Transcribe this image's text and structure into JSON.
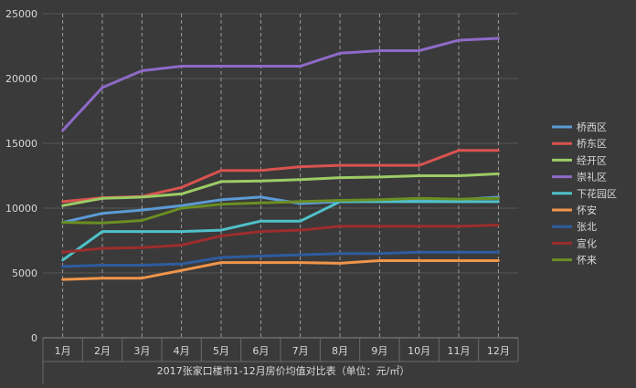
{
  "chart_data": {
    "type": "line",
    "title": "2017张家口楼市1-12月房价均值对比表（单位：元/㎡）",
    "xlabel": "",
    "ylabel": "",
    "categories": [
      "1月",
      "2月",
      "3月",
      "4月",
      "5月",
      "6月",
      "7月",
      "8月",
      "9月",
      "10月",
      "11月",
      "12月"
    ],
    "ylim": [
      0,
      25000
    ],
    "yticks": [
      0,
      5000,
      10000,
      15000,
      20000,
      25000
    ],
    "grid": {
      "horizontal": true,
      "vertical_dashed": true
    },
    "legend_position": "right",
    "series": [
      {
        "name": "桥西区",
        "color": "#5b9bd5",
        "values": [
          8900,
          9600,
          9850,
          10200,
          10650,
          10850,
          10350,
          10500,
          10550,
          10700,
          10650,
          10850
        ]
      },
      {
        "name": "桥东区",
        "color": "#d9534f",
        "values": [
          10500,
          10800,
          10900,
          11600,
          12900,
          12900,
          13200,
          13300,
          13300,
          13300,
          14450,
          14450
        ]
      },
      {
        "name": "经开区",
        "color": "#9ccc65",
        "values": [
          10200,
          10750,
          10850,
          11100,
          12050,
          12100,
          12200,
          12350,
          12400,
          12500,
          12500,
          12650
        ]
      },
      {
        "name": "崇礼区",
        "color": "#8e6ac8",
        "values": [
          16000,
          19300,
          20600,
          20950,
          20950,
          20950,
          20950,
          21950,
          22150,
          22150,
          22950,
          23100
        ]
      },
      {
        "name": "下花园区",
        "color": "#4fc1c9",
        "values": [
          6000,
          8200,
          8200,
          8200,
          8300,
          9000,
          9000,
          10500,
          10500,
          10500,
          10500,
          10500
        ]
      },
      {
        "name": "怀安",
        "color": "#f0954a",
        "values": [
          4500,
          4600,
          4600,
          5200,
          5800,
          5800,
          5800,
          5750,
          5950,
          5950,
          5950,
          5950
        ]
      },
      {
        "name": "张北",
        "color": "#2e5c9e",
        "values": [
          5500,
          5600,
          5600,
          5700,
          6200,
          6300,
          6400,
          6500,
          6500,
          6600,
          6600,
          6600
        ]
      },
      {
        "name": "宣化",
        "color": "#9b2d2d",
        "values": [
          6600,
          6900,
          6950,
          7150,
          7850,
          8200,
          8300,
          8600,
          8600,
          8600,
          8600,
          8700
        ]
      },
      {
        "name": "怀来",
        "color": "#6b8e23",
        "values": [
          8900,
          8850,
          9050,
          10000,
          10300,
          10400,
          10500,
          10600,
          10650,
          10750,
          10700,
          10750
        ]
      }
    ]
  }
}
